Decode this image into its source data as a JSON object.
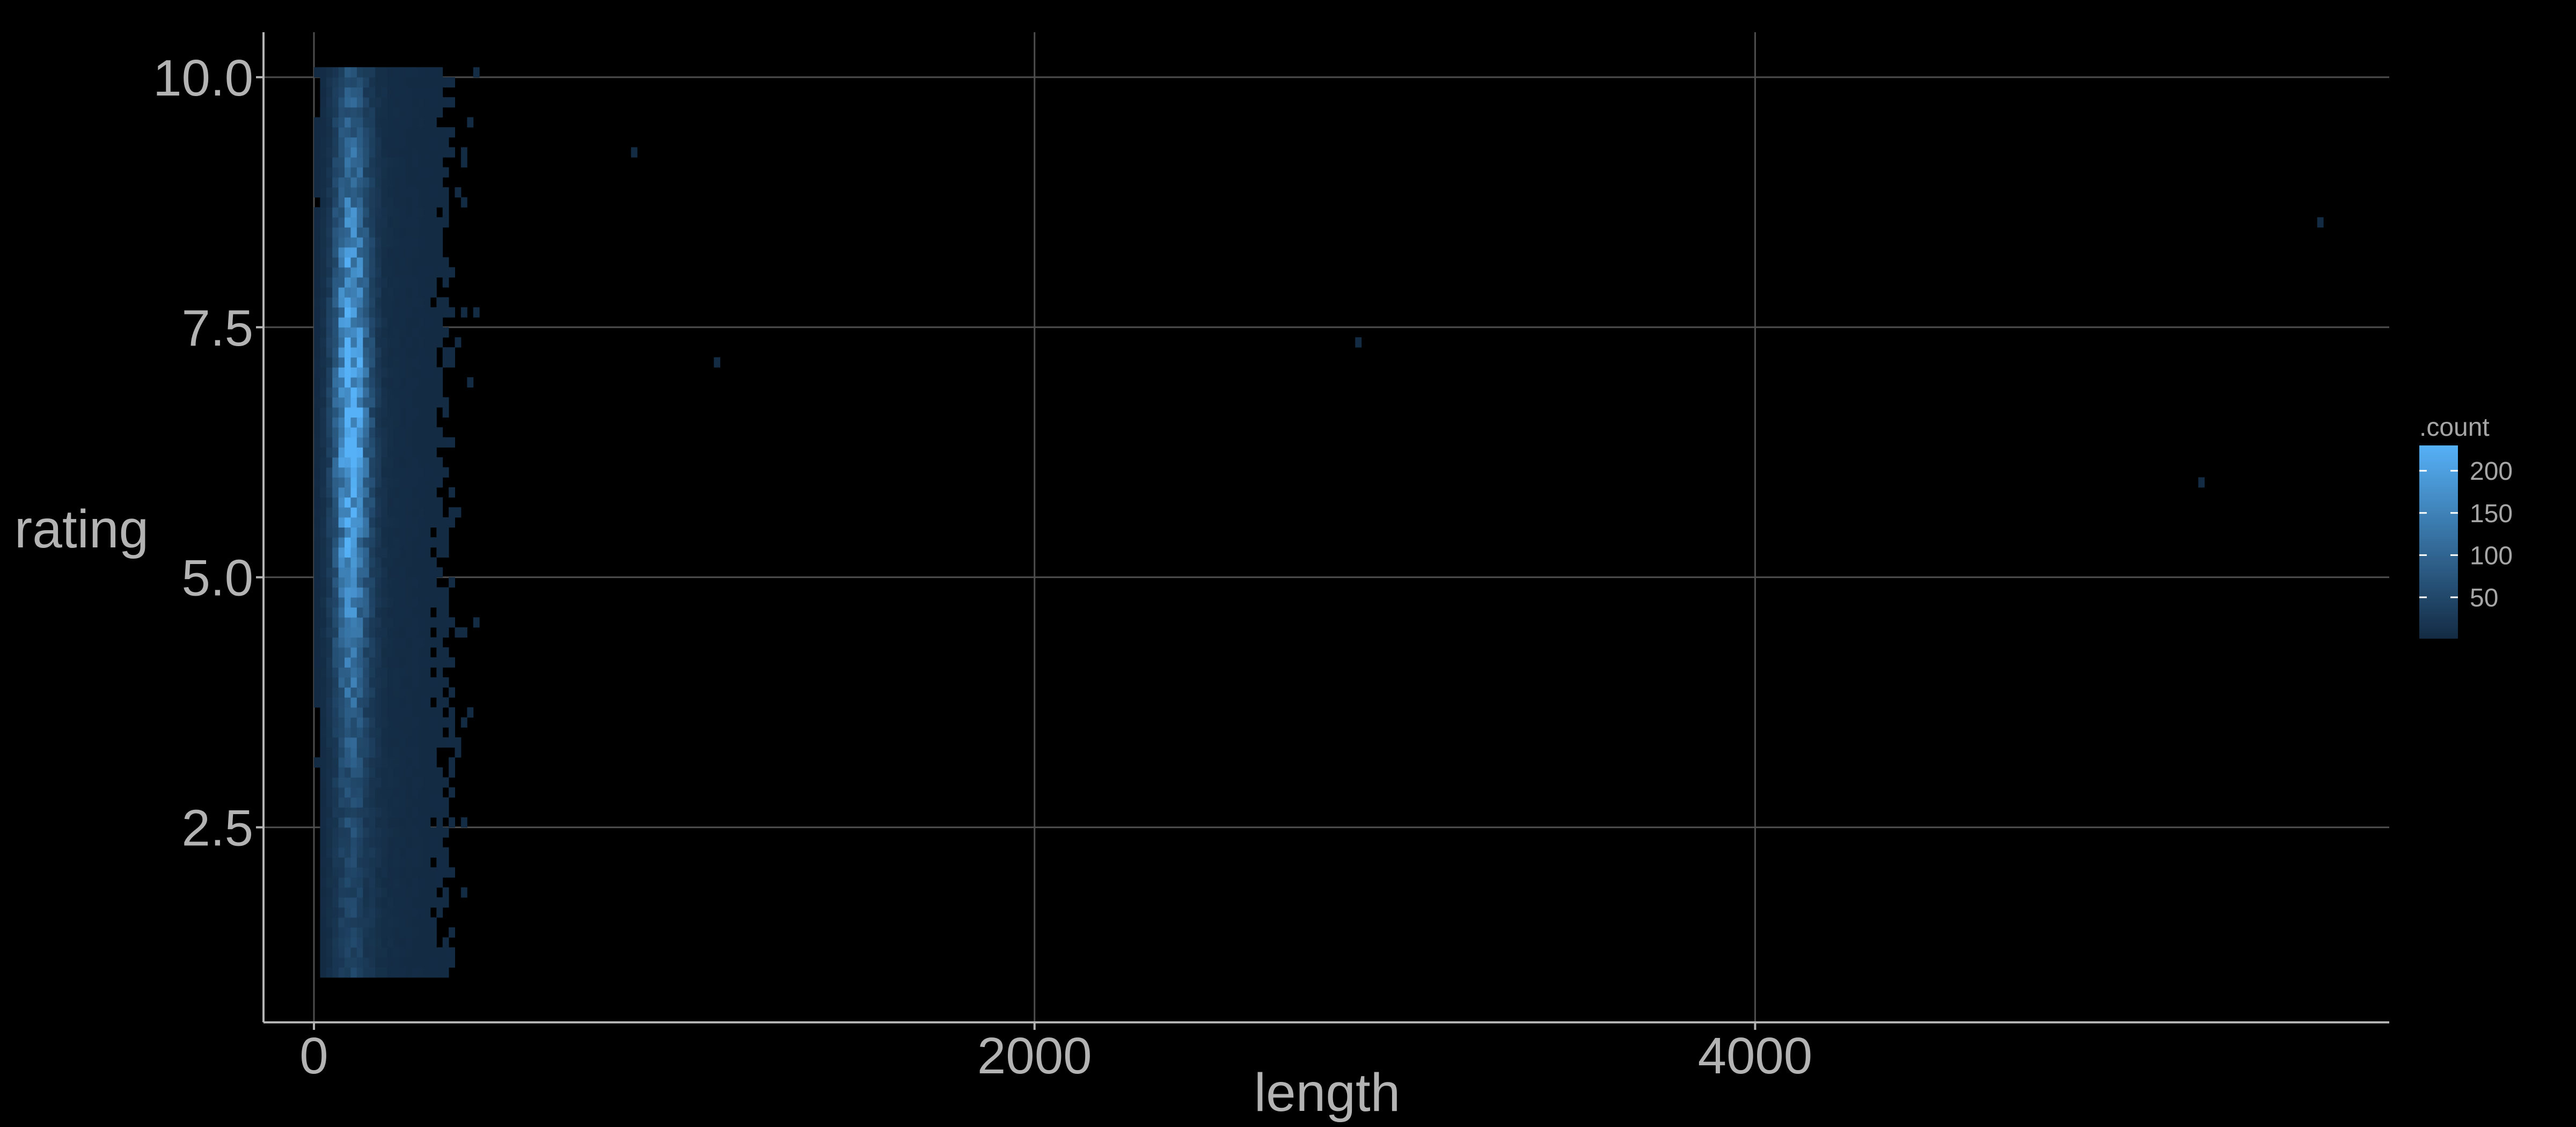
{
  "chart_data": {
    "type": "heatmap",
    "xlabel": "length",
    "ylabel": "rating",
    "xlim": [
      -140,
      5760
    ],
    "ylim": [
      0.55,
      10.45
    ],
    "x_ticks": [
      0,
      2000,
      4000
    ],
    "x_tick_labels": [
      "0",
      "2000",
      "4000"
    ],
    "y_ticks": [
      2.5,
      5.0,
      7.5,
      10.0
    ],
    "y_tick_labels": [
      "2.5",
      "5.0",
      "7.5",
      "10.0"
    ],
    "grid": true,
    "bin_width_x": 17,
    "bin_height_y": 0.1,
    "x_spread_center": 95,
    "count_range": [
      1,
      230
    ],
    "colors": {
      "background": "#000000",
      "grid": "#4d4d4d",
      "axis": "#b3b3b3",
      "low": "#132B43",
      "high": "#56B1F7"
    },
    "legend": {
      "title": ".count",
      "placement": "right",
      "breaks": [
        50,
        100,
        150,
        200
      ],
      "labels": [
        "50",
        "100",
        "150",
        "200"
      ]
    },
    "outliers": [
      {
        "x": 2890,
        "y": 7.3,
        "count": 1
      },
      {
        "x": 5560,
        "y": 8.5,
        "count": 1
      },
      {
        "x": 5230,
        "y": 5.9,
        "count": 1
      },
      {
        "x": 880,
        "y": 9.2,
        "count": 1
      },
      {
        "x": 1110,
        "y": 7.1,
        "count": 1
      }
    ]
  }
}
